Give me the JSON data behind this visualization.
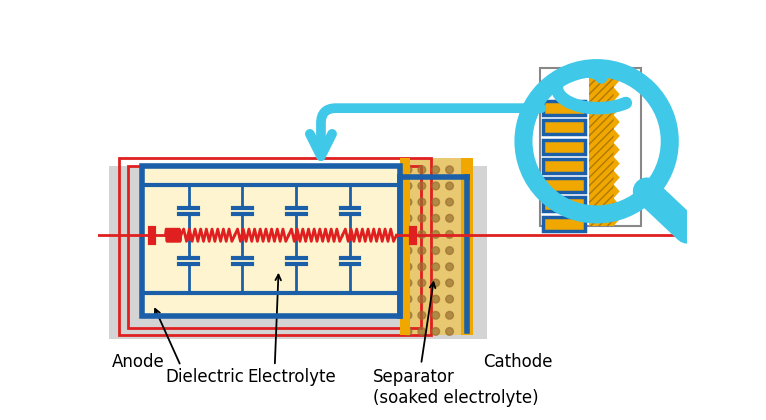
{
  "bg_color": "#ffffff",
  "gray_bg": "#d4d4d4",
  "yellow_fill": "#fef5d0",
  "blue_color": "#1a5fa8",
  "red_color": "#e02020",
  "cyan_color": "#40c8e8",
  "gold_color": "#f0a800",
  "dark_gold": "#b07800",
  "sep_bg": "#d4a84a",
  "sep_dot": "#9a7030",
  "text_color": "#000000",
  "labels": {
    "anode": "Anode",
    "dielectric": "Dielectric",
    "electrolyte": "Electrolyte",
    "cathode": "Cathode",
    "separator": "Separator\n(soaked electrolyte)"
  }
}
